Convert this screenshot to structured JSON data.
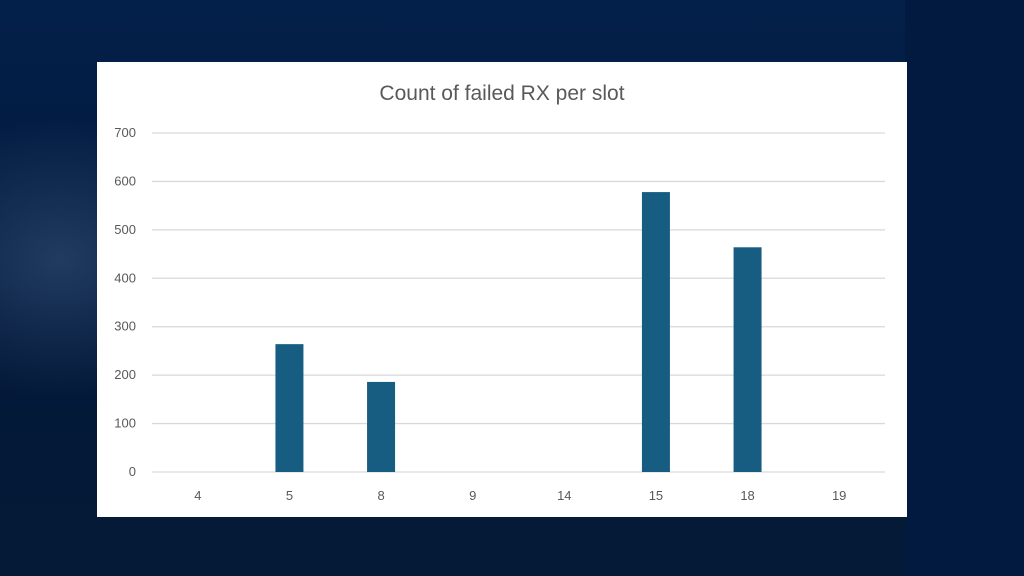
{
  "chart_data": {
    "type": "bar",
    "title": "Count of failed RX per slot",
    "xlabel": "",
    "ylabel": "",
    "categories": [
      "4",
      "5",
      "8",
      "9",
      "14",
      "15",
      "18",
      "19"
    ],
    "values": [
      0,
      264,
      186,
      0,
      0,
      578,
      464,
      0
    ],
    "ylim": [
      0,
      700
    ],
    "yticks": [
      0,
      100,
      200,
      300,
      400,
      500,
      600,
      700
    ],
    "grid": true,
    "legend": "none",
    "bar_color": "#175d82",
    "grid_color": "#d9d9d9",
    "text_color": "#595959"
  }
}
